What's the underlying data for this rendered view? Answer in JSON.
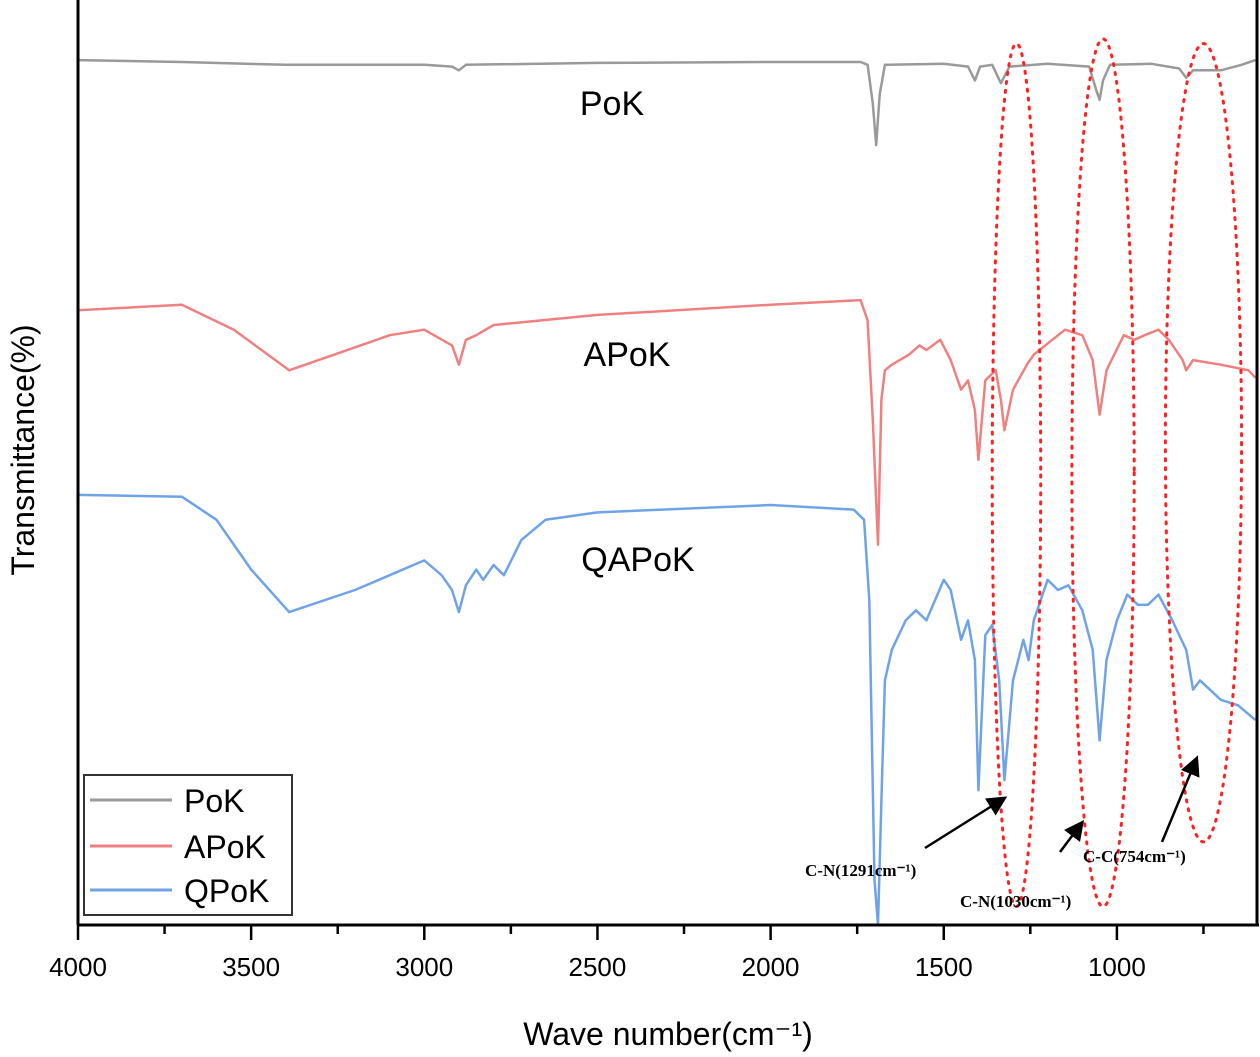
{
  "chart_data": {
    "type": "line",
    "title": "",
    "xlabel": "Wave number(cm⁻¹)",
    "ylabel": "Transmittance(%)",
    "xlim": [
      4000,
      600
    ],
    "ylim": [
      0,
      100
    ],
    "x_ticks": [
      4000,
      3500,
      3000,
      2500,
      2000,
      1500,
      1000
    ],
    "x_tick_labels": [
      "4000",
      "3500",
      "3000",
      "2500",
      "2000",
      "1500",
      "1000"
    ],
    "grid": false,
    "legend": {
      "placement": "bottom-left",
      "entries": [
        "PoK",
        "APoK",
        "QPoK"
      ]
    },
    "series": [
      {
        "name": "PoK",
        "tag": "PoK",
        "color": "#9a9a9a",
        "points": [
          [
            4000,
            93.7
          ],
          [
            3700,
            93.5
          ],
          [
            3400,
            93.2
          ],
          [
            3000,
            93.2
          ],
          [
            2920,
            93.0
          ],
          [
            2900,
            92.6
          ],
          [
            2880,
            93.2
          ],
          [
            2500,
            93.4
          ],
          [
            2000,
            93.5
          ],
          [
            1740,
            93.5
          ],
          [
            1720,
            93.2
          ],
          [
            1705,
            89
          ],
          [
            1695,
            84.5
          ],
          [
            1685,
            90
          ],
          [
            1670,
            93.2
          ],
          [
            1500,
            93.3
          ],
          [
            1430,
            93.0
          ],
          [
            1410,
            91.5
          ],
          [
            1395,
            93.0
          ],
          [
            1360,
            93.2
          ],
          [
            1335,
            91.2
          ],
          [
            1310,
            93.0
          ],
          [
            1200,
            93.3
          ],
          [
            1080,
            93.0
          ],
          [
            1060,
            90.5
          ],
          [
            1050,
            89.4
          ],
          [
            1040,
            91.5
          ],
          [
            1020,
            93.2
          ],
          [
            900,
            93.3
          ],
          [
            820,
            92.8
          ],
          [
            800,
            91.8
          ],
          [
            780,
            92.6
          ],
          [
            700,
            92.6
          ],
          [
            640,
            93.2
          ],
          [
            600,
            93.7
          ]
        ]
      },
      {
        "name": "APoK",
        "tag": "APoK",
        "color": "#f08080",
        "points": [
          [
            4000,
            66.6
          ],
          [
            3700,
            67.2
          ],
          [
            3550,
            64.5
          ],
          [
            3390,
            60.1
          ],
          [
            3100,
            63.9
          ],
          [
            3000,
            64.5
          ],
          [
            2920,
            62.8
          ],
          [
            2900,
            60.7
          ],
          [
            2880,
            63.4
          ],
          [
            2850,
            63.9
          ],
          [
            2800,
            65.0
          ],
          [
            2500,
            66.1
          ],
          [
            2000,
            67.2
          ],
          [
            1740,
            67.7
          ],
          [
            1720,
            65.5
          ],
          [
            1705,
            54.7
          ],
          [
            1690,
            41.2
          ],
          [
            1680,
            56.9
          ],
          [
            1670,
            60.1
          ],
          [
            1650,
            60.7
          ],
          [
            1600,
            61.8
          ],
          [
            1570,
            62.8
          ],
          [
            1550,
            62.3
          ],
          [
            1510,
            63.4
          ],
          [
            1480,
            61.2
          ],
          [
            1450,
            58.0
          ],
          [
            1430,
            59.0
          ],
          [
            1410,
            55.8
          ],
          [
            1400,
            50.4
          ],
          [
            1380,
            59.0
          ],
          [
            1350,
            60.1
          ],
          [
            1335,
            56.9
          ],
          [
            1325,
            53.6
          ],
          [
            1300,
            58.0
          ],
          [
            1260,
            60.7
          ],
          [
            1240,
            61.8
          ],
          [
            1150,
            64.5
          ],
          [
            1100,
            63.9
          ],
          [
            1070,
            61.2
          ],
          [
            1050,
            55.3
          ],
          [
            1030,
            60.1
          ],
          [
            980,
            63.9
          ],
          [
            950,
            63.4
          ],
          [
            920,
            63.9
          ],
          [
            880,
            64.5
          ],
          [
            850,
            63.4
          ],
          [
            810,
            61.2
          ],
          [
            800,
            60.1
          ],
          [
            780,
            61.2
          ],
          [
            700,
            60.7
          ],
          [
            620,
            60.1
          ],
          [
            600,
            59.3
          ]
        ]
      },
      {
        "name": "QPoK",
        "tag": "QAPoK",
        "color": "#6fa3e8",
        "points": [
          [
            4000,
            46.6
          ],
          [
            3700,
            46.4
          ],
          [
            3600,
            43.9
          ],
          [
            3500,
            38.5
          ],
          [
            3390,
            33.9
          ],
          [
            3200,
            36.3
          ],
          [
            3000,
            39.5
          ],
          [
            2950,
            37.9
          ],
          [
            2920,
            36.3
          ],
          [
            2900,
            33.9
          ],
          [
            2880,
            36.8
          ],
          [
            2850,
            38.5
          ],
          [
            2830,
            37.4
          ],
          [
            2800,
            39.0
          ],
          [
            2770,
            37.9
          ],
          [
            2720,
            41.7
          ],
          [
            2650,
            43.9
          ],
          [
            2500,
            44.7
          ],
          [
            2000,
            45.5
          ],
          [
            1760,
            45.0
          ],
          [
            1730,
            43.9
          ],
          [
            1715,
            35.2
          ],
          [
            1700,
            4.9
          ],
          [
            1690,
            0
          ],
          [
            1680,
            13.5
          ],
          [
            1670,
            26.5
          ],
          [
            1650,
            29.8
          ],
          [
            1610,
            33.0
          ],
          [
            1580,
            34.1
          ],
          [
            1550,
            33.0
          ],
          [
            1500,
            37.4
          ],
          [
            1480,
            36.3
          ],
          [
            1450,
            30.9
          ],
          [
            1430,
            33.0
          ],
          [
            1410,
            28.7
          ],
          [
            1400,
            14.6
          ],
          [
            1380,
            31.4
          ],
          [
            1360,
            32.5
          ],
          [
            1340,
            26.5
          ],
          [
            1325,
            15.7
          ],
          [
            1300,
            26.5
          ],
          [
            1270,
            30.9
          ],
          [
            1255,
            28.7
          ],
          [
            1240,
            33.0
          ],
          [
            1200,
            37.4
          ],
          [
            1170,
            36.3
          ],
          [
            1140,
            36.8
          ],
          [
            1100,
            34.1
          ],
          [
            1070,
            29.8
          ],
          [
            1050,
            20.0
          ],
          [
            1030,
            28.7
          ],
          [
            1000,
            33.0
          ],
          [
            970,
            35.8
          ],
          [
            940,
            34.7
          ],
          [
            910,
            34.7
          ],
          [
            880,
            35.8
          ],
          [
            840,
            33.0
          ],
          [
            800,
            29.8
          ],
          [
            780,
            25.5
          ],
          [
            760,
            26.5
          ],
          [
            700,
            24.4
          ],
          [
            650,
            23.8
          ],
          [
            600,
            22.2
          ]
        ]
      }
    ],
    "annotations": [
      {
        "label": "C-N(1291cm⁻¹)",
        "wavenumber": 1291,
        "ellipse_x": [
          1360,
          1220
        ],
        "ellipse_y": [
          2,
          95.5
        ]
      },
      {
        "label": "C-N(1030cm⁻¹)",
        "wavenumber": 1030,
        "ellipse_x": [
          1130,
          950
        ],
        "ellipse_y": [
          2,
          96
        ]
      },
      {
        "label": "C-C(754cm⁻¹)",
        "wavenumber": 754,
        "ellipse_x": [
          860,
          640
        ],
        "ellipse_y": [
          9,
          95.5
        ]
      }
    ]
  }
}
